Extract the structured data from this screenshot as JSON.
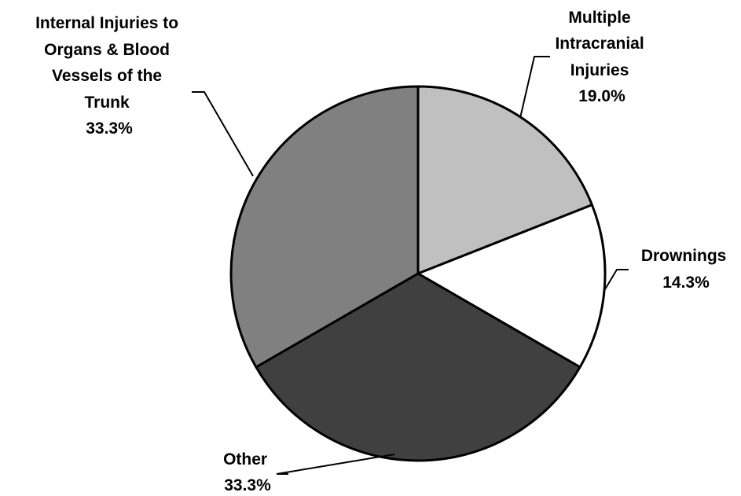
{
  "chart_data": {
    "type": "pie",
    "title": "",
    "start_angle_deg": 0,
    "direction": "clockwise",
    "slices": [
      {
        "key": "multiple_intracranial",
        "label_lines": [
          "Multiple",
          "Intracranial",
          "Injuries"
        ],
        "value": 19.0,
        "value_label": "19.0%",
        "color": "#c0c0c0"
      },
      {
        "key": "drownings",
        "label_lines": [
          "Drownings"
        ],
        "value": 14.3,
        "value_label": "14.3%",
        "color": "#ffffff"
      },
      {
        "key": "other",
        "label_lines": [
          "Other"
        ],
        "value": 33.3,
        "value_label": "33.3%",
        "color": "#404040"
      },
      {
        "key": "internal_injuries",
        "label_lines": [
          "Internal Injuries to",
          "Organs & Blood",
          "Vessels of the",
          "Trunk"
        ],
        "value": 33.3,
        "value_label": "33.3%",
        "color": "#808080"
      }
    ]
  }
}
